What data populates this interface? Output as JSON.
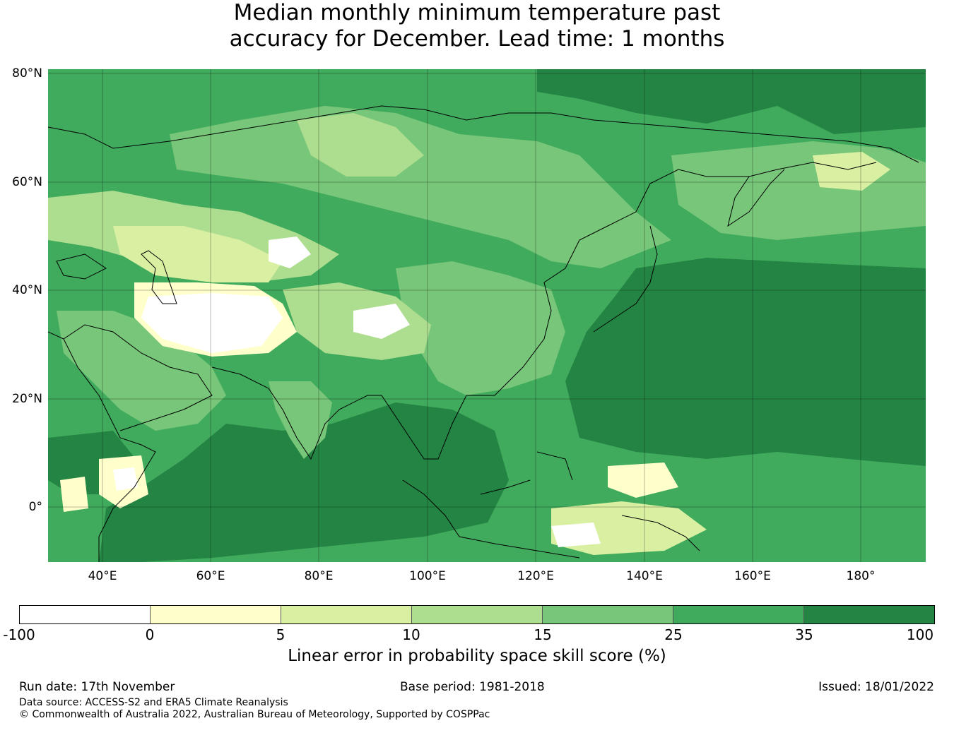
{
  "title": {
    "line1": "Median monthly minimum temperature past",
    "line2": "accuracy for December. Lead time: 1 months"
  },
  "map": {
    "lat_labels": [
      "80°N",
      "60°N",
      "40°N",
      "20°N",
      "0°"
    ],
    "lon_labels": [
      "40°E",
      "60°E",
      "80°E",
      "100°E",
      "120°E",
      "140°E",
      "160°E",
      "180°"
    ]
  },
  "colorbar": {
    "colors": [
      "#ffffff",
      "#ffffcc",
      "#d9f0a3",
      "#addd8e",
      "#78c679",
      "#41ab5d",
      "#238443"
    ],
    "ticks": [
      "-100",
      "0",
      "5",
      "10",
      "15",
      "25",
      "35",
      "100"
    ],
    "label": "Linear error in probability space skill score (%)"
  },
  "footer": {
    "run_date": "Run date: 17th November",
    "base_period": "Base period: 1981-2018",
    "issued": "Issued: 18/01/2022",
    "data_source": "Data source: ACCESS-S2 and ERA5 Climate Reanalysis",
    "copyright": "© Commonwealth of Australia 2022, Australian Bureau of Meteorology, Supported by COSPPac"
  }
}
